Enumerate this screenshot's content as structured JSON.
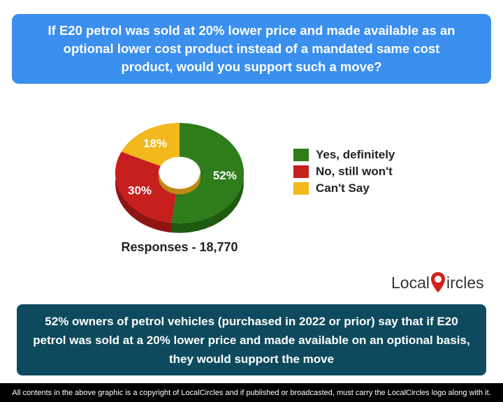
{
  "question": "If E20 petrol was sold at 20% lower price and made available as an optional lower cost product instead of a mandated same cost product, would you support such a move?",
  "chart_data": {
    "type": "pie",
    "style": "3d-donut",
    "categories": [
      "Yes, definitely",
      "No, still won't",
      "Can't Say"
    ],
    "values": [
      52,
      30,
      18
    ],
    "labels": [
      "52%",
      "30%",
      "18%"
    ],
    "colors": [
      "#2e7d1a",
      "#c71e1e",
      "#f2b81c"
    ],
    "side_colors": [
      "#1f5a10",
      "#8f1414",
      "#b88a10"
    ],
    "legend_position": "right"
  },
  "responses": "Responses - 18,770",
  "logo": {
    "text_before": "Local",
    "text_after": "ircles"
  },
  "summary": "52% owners of petrol vehicles (purchased in 2022 or prior) say that if E20 petrol was sold at a 20% lower price and made available on an optional basis, they would support the move",
  "footer": "All contents in the above graphic is a copyright of LocalCircles and if published or broadcasted, must carry the LocalCircles logo along with it."
}
